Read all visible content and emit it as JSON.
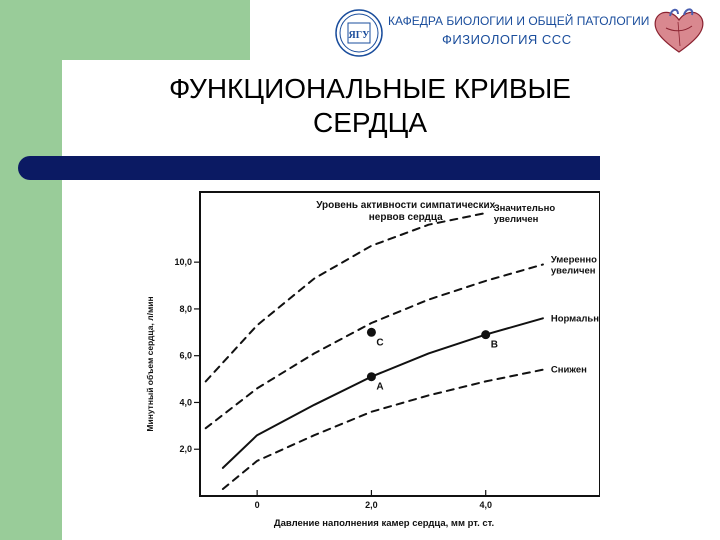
{
  "header": {
    "line1": "КАФЕДРА БИОЛОГИИ И ОБЩЕЙ ПАТОЛОГИИ",
    "line2": "ФИЗИОЛОГИЯ ССС",
    "logo_text": "ЯГУ",
    "logo_icon": "university-logo-icon",
    "decor_icon": "heart-illustration-icon"
  },
  "slide": {
    "title_line1": "ФУНКЦИОНАЛЬНЫЕ КРИВЫЕ",
    "title_line2": "СЕРДЦА"
  },
  "colors": {
    "band_green": "#99cc99",
    "bar_navy": "#0b1a63",
    "header_blue": "#1a4d9c",
    "ink": "#111111"
  },
  "chart_data": {
    "type": "line",
    "xlabel": "Давление наполнения камер сердца, мм рт. ст.",
    "ylabel": "Минутный объем сердца, л/мин",
    "xlim": [
      -1,
      6
    ],
    "ylim": [
      0,
      13
    ],
    "xticks": [
      0,
      2.0,
      4.0
    ],
    "xtick_labels": [
      "0",
      "2,0",
      "4,0"
    ],
    "yticks": [
      2.0,
      4.0,
      6.0,
      8.0,
      10.0
    ],
    "ytick_labels": [
      "2,0",
      "4,0",
      "6,0",
      "8,0",
      "10,0"
    ],
    "legend_title_line1": "Уровень активности симпатических",
    "legend_title_line2": "нервов сердца",
    "series": [
      {
        "name": "Значительно увеличен",
        "label_lines": [
          "Значительно",
          "увеличен"
        ],
        "style": "dashed",
        "x": [
          -0.9,
          0.0,
          1.0,
          2.0,
          3.0,
          4.0
        ],
        "y": [
          4.9,
          7.3,
          9.3,
          10.7,
          11.6,
          12.1
        ]
      },
      {
        "name": "Умеренно увеличен",
        "label_lines": [
          "Умеренно",
          "увеличен"
        ],
        "style": "dashed",
        "x": [
          -0.9,
          0.0,
          1.0,
          2.0,
          3.0,
          4.0,
          5.0
        ],
        "y": [
          2.9,
          4.6,
          6.1,
          7.4,
          8.4,
          9.2,
          9.9
        ]
      },
      {
        "name": "Нормальный",
        "label_lines": [
          "Нормальный"
        ],
        "style": "solid",
        "x": [
          -0.6,
          0.0,
          1.0,
          2.0,
          3.0,
          4.0,
          5.0
        ],
        "y": [
          1.2,
          2.6,
          3.9,
          5.1,
          6.1,
          6.9,
          7.6
        ]
      },
      {
        "name": "Снижен",
        "label_lines": [
          "Снижен"
        ],
        "style": "dashed",
        "x": [
          -0.6,
          0.0,
          1.0,
          2.0,
          3.0,
          4.0,
          5.0
        ],
        "y": [
          0.3,
          1.5,
          2.6,
          3.6,
          4.3,
          4.9,
          5.4
        ]
      }
    ],
    "points": [
      {
        "label": "A",
        "x": 2.0,
        "y": 5.1
      },
      {
        "label": "B",
        "x": 4.0,
        "y": 6.9
      },
      {
        "label": "C",
        "x": 2.0,
        "y": 7.0
      }
    ],
    "grid": false,
    "legend_placement": "top-right"
  }
}
